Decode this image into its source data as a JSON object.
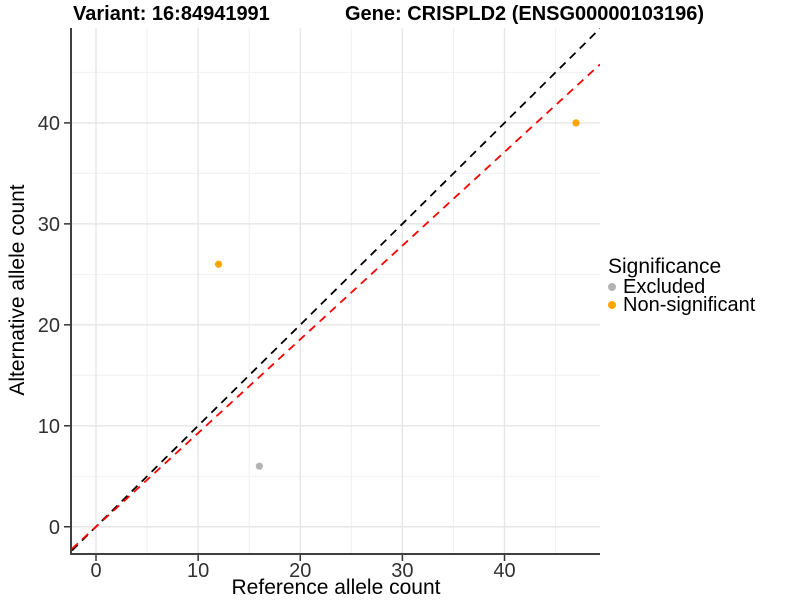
{
  "chart_data": {
    "type": "scatter",
    "title_left": "Variant: 16:84941991",
    "title_right": "Gene: CRISPLD2 (ENSG00000103196)",
    "xlabel": "Reference allele count",
    "ylabel": "Alternative allele count",
    "xlim": [
      -2.35,
      49.35
    ],
    "ylim": [
      -2.6,
      49.4
    ],
    "xticks": [
      0,
      10,
      20,
      30,
      40
    ],
    "yticks": [
      0,
      10,
      20,
      30,
      40
    ],
    "minor_ticks": [
      5,
      15,
      25,
      35,
      45
    ],
    "grid": true,
    "series": [
      {
        "name": "Excluded",
        "color": "#B3B3B3",
        "points": [
          {
            "x": 16,
            "y": 6
          }
        ]
      },
      {
        "name": "Non-significant",
        "color": "#FFA500",
        "points": [
          {
            "x": 12,
            "y": 26
          },
          {
            "x": 47,
            "y": 40
          }
        ]
      }
    ],
    "lines": [
      {
        "name": "identity-line",
        "color": "#000000",
        "slope": 1.0,
        "intercept": 0,
        "dash": "8 6"
      },
      {
        "name": "expected-ratio-line",
        "color": "#FF0000",
        "slope": 0.928,
        "intercept": 0,
        "dash": "8 6"
      }
    ],
    "legend": {
      "title": "Significance",
      "position": "right",
      "items": [
        {
          "label": "Excluded",
          "color": "#B3B3B3"
        },
        {
          "label": "Non-significant",
          "color": "#FFA500"
        }
      ]
    }
  }
}
